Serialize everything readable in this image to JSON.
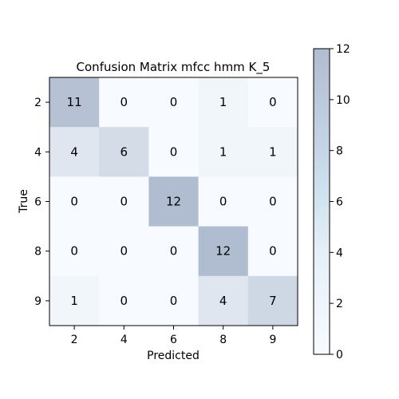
{
  "chart_data": {
    "type": "heatmap",
    "title": "Confusion Matrix mfcc hmm K_5",
    "xlabel": "Predicted",
    "ylabel": "True",
    "x_categories": [
      "2",
      "4",
      "6",
      "8",
      "9"
    ],
    "y_categories": [
      "2",
      "4",
      "6",
      "8",
      "9"
    ],
    "values": [
      [
        11,
        0,
        0,
        1,
        0
      ],
      [
        4,
        6,
        0,
        1,
        1
      ],
      [
        0,
        0,
        12,
        0,
        0
      ],
      [
        0,
        0,
        0,
        12,
        0
      ],
      [
        1,
        0,
        0,
        4,
        7
      ]
    ],
    "colorbar": {
      "min": 0,
      "max": 12,
      "ticks": [
        "0",
        "2",
        "4",
        "6",
        "8",
        "10",
        "12"
      ]
    },
    "colors": {
      "low": "#f7fbff",
      "high": "#b0bdd0"
    }
  }
}
